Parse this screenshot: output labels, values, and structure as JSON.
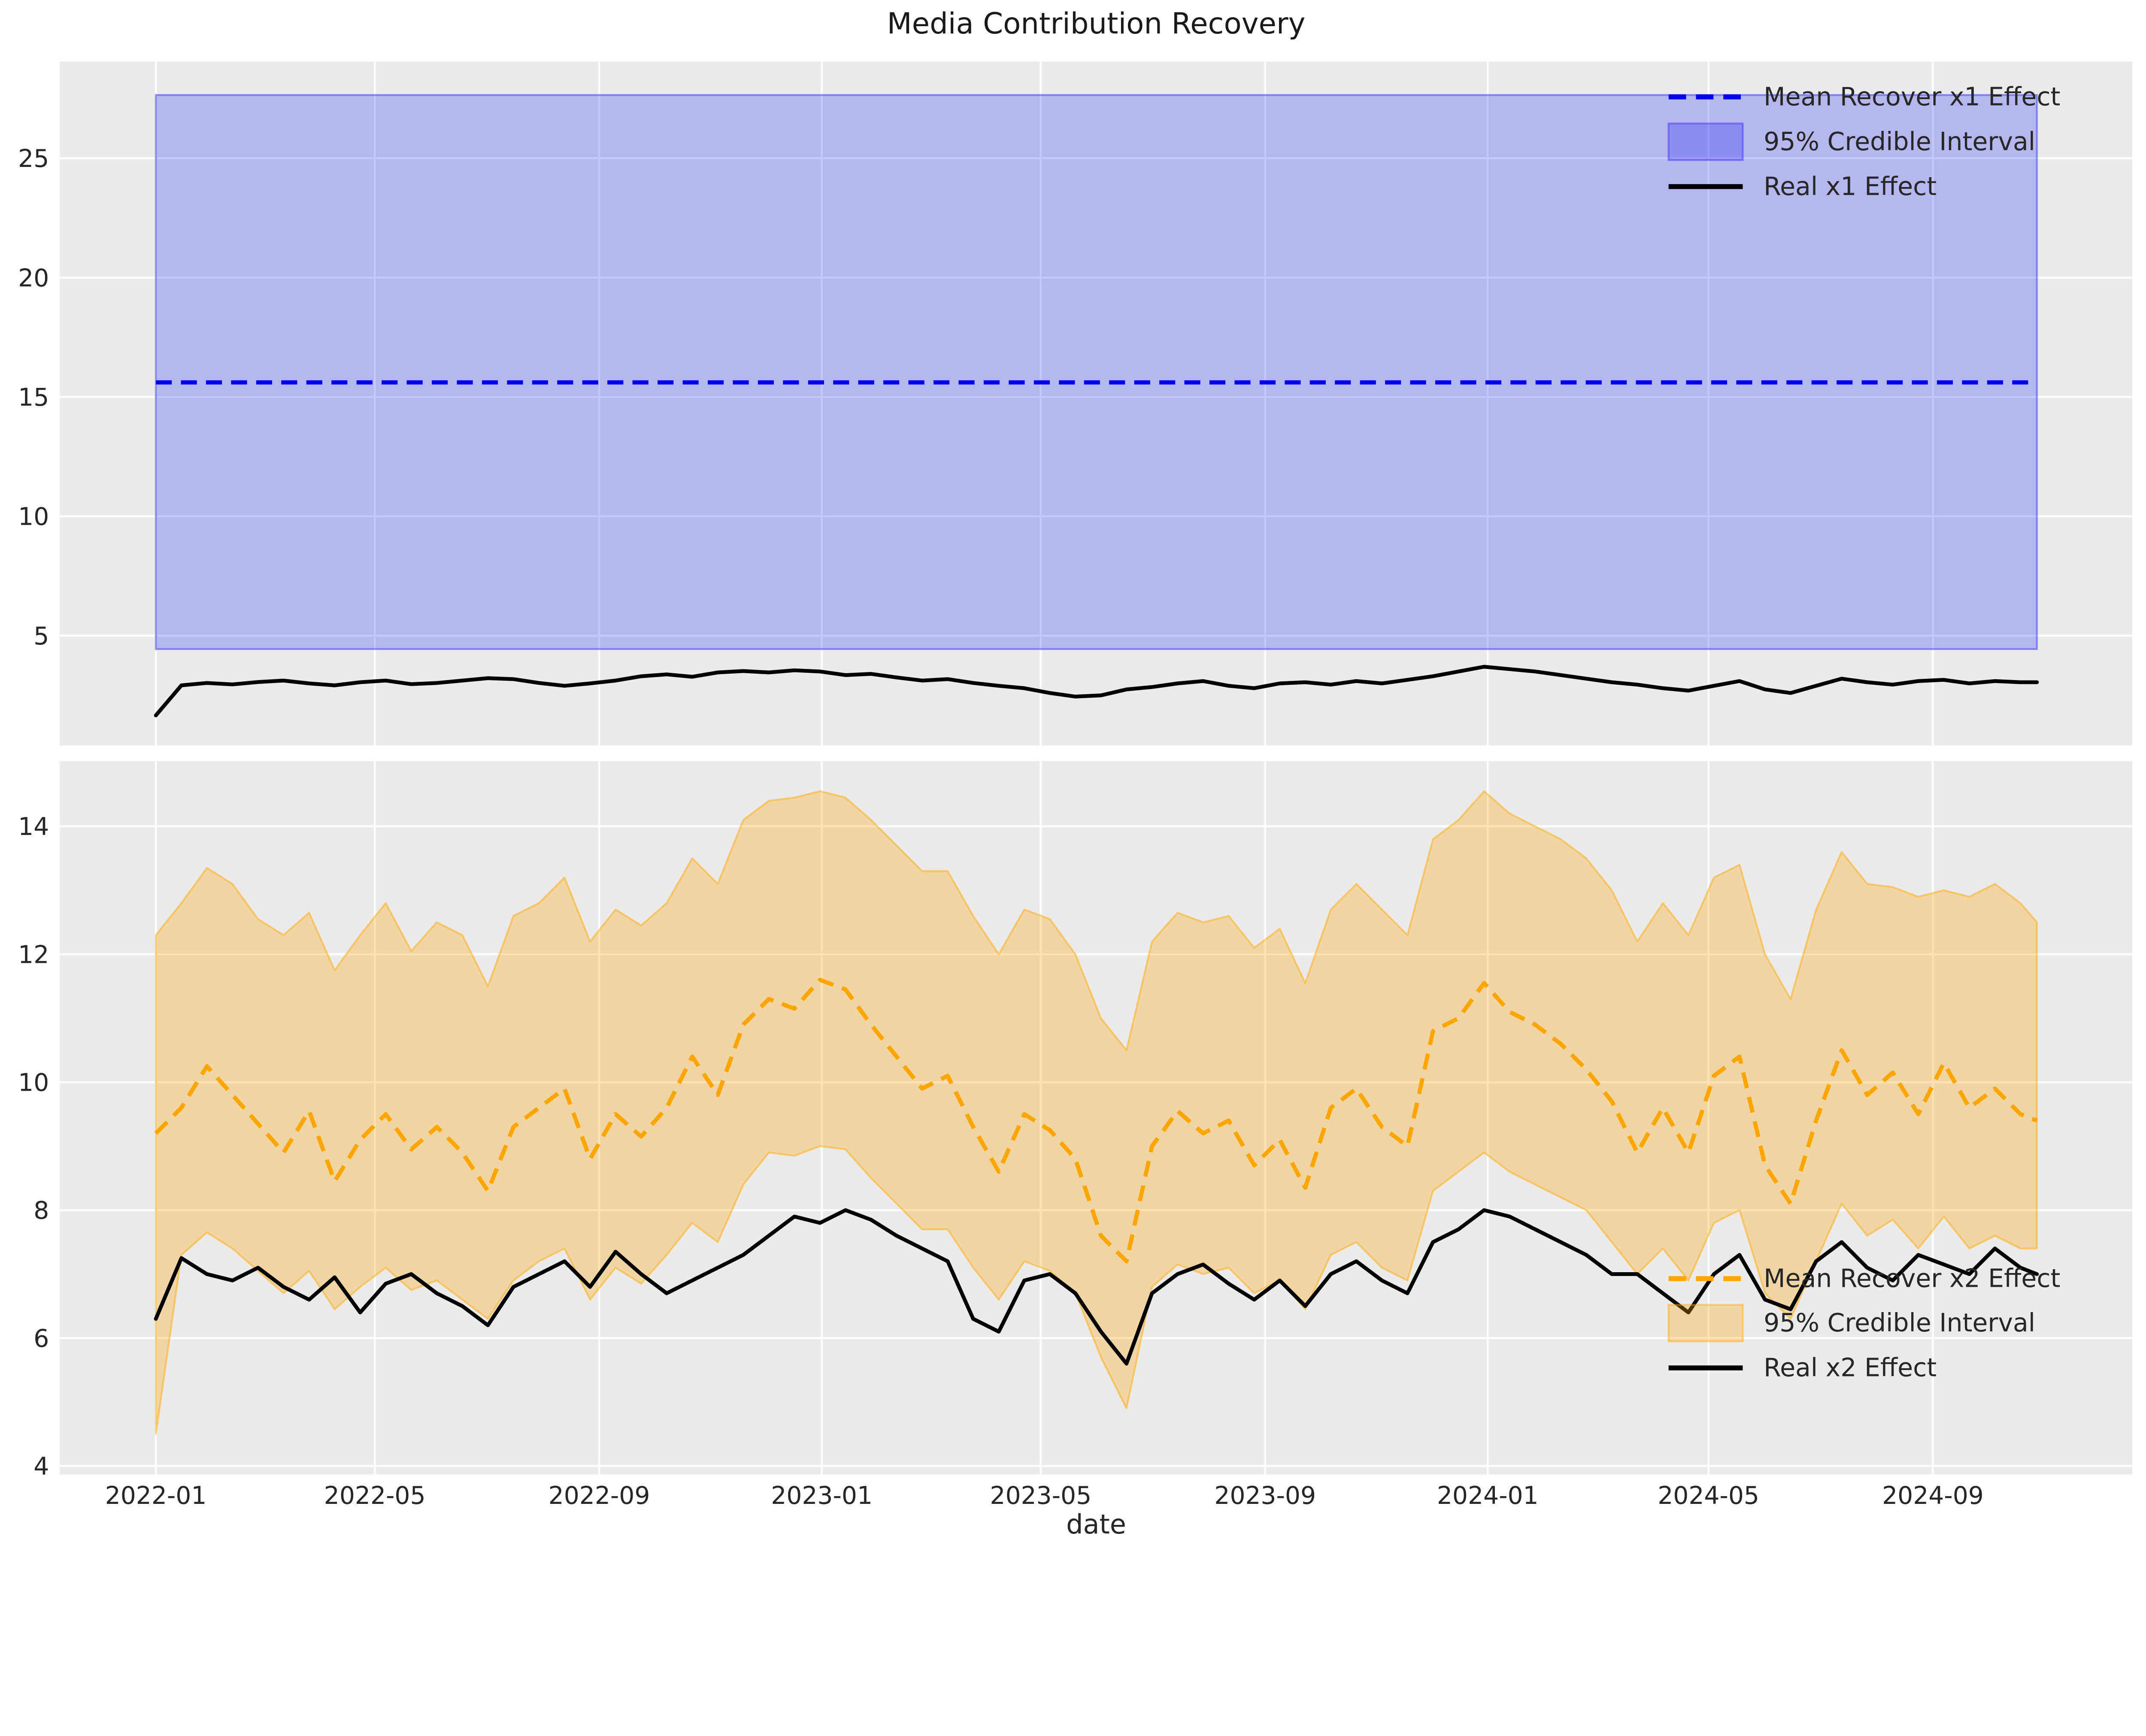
{
  "figure": {
    "title": "Media Contribution Recovery",
    "xlabel": "date",
    "background": "#ffffff",
    "axes_background": "#ebebeb",
    "grid_color": "#ffffff",
    "tick_color": "#262626"
  },
  "x_axis": {
    "label": "date",
    "ticks": [
      {
        "label": "2022-01",
        "t": 0
      },
      {
        "label": "2022-05",
        "t": 120
      },
      {
        "label": "2022-09",
        "t": 243
      },
      {
        "label": "2023-01",
        "t": 365
      },
      {
        "label": "2023-05",
        "t": 485
      },
      {
        "label": "2023-09",
        "t": 608
      },
      {
        "label": "2024-01",
        "t": 730
      },
      {
        "label": "2024-05",
        "t": 851
      },
      {
        "label": "2024-09",
        "t": 974
      }
    ],
    "xlim_days": [
      -52.7,
      1083.3
    ],
    "t_start_date": "2022-01-01"
  },
  "chart_data": [
    {
      "type": "line",
      "panel": "top",
      "ylim": [
        0.4,
        29.05
      ],
      "yticks": [
        5,
        10,
        15,
        20,
        25
      ],
      "grid": true,
      "legend_position": "upper right",
      "legend": [
        {
          "label": "Mean Recover x1 Effect",
          "style": "dashed",
          "color": "#0000ee"
        },
        {
          "label": "95% Credible Interval",
          "style": "patch",
          "fill": "rgba(0,0,255,0.22)",
          "edge": "rgba(60,60,235,0.5)"
        },
        {
          "label": "Real x1 Effect",
          "style": "solid",
          "color": "#000000"
        }
      ],
      "band": {
        "constant": true,
        "lower": 4.44,
        "upper": 27.65,
        "fill": "rgba(0,0,255,0.22)",
        "edge": "rgba(60,60,235,0.5)"
      },
      "mean_line": {
        "constant": 15.61,
        "color": "#0000ee",
        "style": "dashed"
      },
      "real_line": {
        "color": "#000000",
        "t": [
          0,
          14,
          28,
          42,
          56,
          70,
          84,
          98,
          112,
          126,
          140,
          154,
          168,
          182,
          196,
          210,
          224,
          238,
          252,
          266,
          280,
          294,
          308,
          322,
          336,
          350,
          364,
          378,
          392,
          406,
          420,
          434,
          448,
          462,
          476,
          490,
          504,
          518,
          532,
          546,
          560,
          574,
          588,
          602,
          616,
          630,
          644,
          658,
          672,
          686,
          700,
          714,
          728,
          742,
          756,
          770,
          784,
          798,
          812,
          826,
          840,
          854,
          868,
          882,
          896,
          910,
          924,
          938,
          952,
          966,
          980,
          994,
          1008,
          1022,
          1031
        ],
        "y": [
          1.66,
          2.92,
          3.02,
          2.96,
          3.06,
          3.12,
          3.0,
          2.92,
          3.05,
          3.12,
          2.97,
          3.02,
          3.12,
          3.22,
          3.18,
          3.02,
          2.9,
          3.0,
          3.12,
          3.3,
          3.38,
          3.28,
          3.46,
          3.52,
          3.46,
          3.55,
          3.5,
          3.35,
          3.4,
          3.25,
          3.12,
          3.18,
          3.02,
          2.9,
          2.8,
          2.6,
          2.45,
          2.5,
          2.75,
          2.85,
          3.0,
          3.1,
          2.9,
          2.8,
          3.0,
          3.05,
          2.95,
          3.1,
          3.0,
          3.15,
          3.3,
          3.5,
          3.7,
          3.6,
          3.5,
          3.35,
          3.2,
          3.05,
          2.95,
          2.8,
          2.7,
          2.9,
          3.1,
          2.75,
          2.6,
          2.9,
          3.2,
          3.05,
          2.95,
          3.1,
          3.15,
          3.0,
          3.1,
          3.05,
          3.05
        ]
      }
    },
    {
      "type": "line",
      "panel": "bottom",
      "ylim": [
        3.87,
        15.02
      ],
      "yticks": [
        4,
        6,
        8,
        10,
        12,
        14
      ],
      "grid": true,
      "legend_position": "lower right",
      "legend": [
        {
          "label": "Mean Recover x2 Effect",
          "style": "dashed",
          "color": "#ffa500"
        },
        {
          "label": "95% Credible Interval",
          "style": "patch",
          "fill": "rgba(255,166,0,0.30)",
          "edge": "rgba(255,166,0,0.45)"
        },
        {
          "label": "Real x2 Effect",
          "style": "solid",
          "color": "#000000"
        }
      ],
      "band": {
        "constant": false,
        "fill": "rgba(255,166,0,0.30)",
        "edge": "rgba(255,166,0,0.45)",
        "t": [
          0,
          14,
          28,
          42,
          56,
          70,
          84,
          98,
          112,
          126,
          140,
          154,
          168,
          182,
          196,
          210,
          224,
          238,
          252,
          266,
          280,
          294,
          308,
          322,
          336,
          350,
          364,
          378,
          392,
          406,
          420,
          434,
          448,
          462,
          476,
          490,
          504,
          518,
          532,
          546,
          560,
          574,
          588,
          602,
          616,
          630,
          644,
          658,
          672,
          686,
          700,
          714,
          728,
          742,
          756,
          770,
          784,
          798,
          812,
          826,
          840,
          854,
          868,
          882,
          896,
          910,
          924,
          938,
          952,
          966,
          980,
          994,
          1008,
          1022,
          1031
        ],
        "lower": [
          4.5,
          7.3,
          7.65,
          7.4,
          7.05,
          6.7,
          7.05,
          6.45,
          6.8,
          7.1,
          6.75,
          6.9,
          6.6,
          6.3,
          6.9,
          7.2,
          7.4,
          6.6,
          7.1,
          6.85,
          7.3,
          7.8,
          7.5,
          8.4,
          8.9,
          8.85,
          9.0,
          8.95,
          8.5,
          8.1,
          7.7,
          7.7,
          7.1,
          6.6,
          7.2,
          7.05,
          6.7,
          5.7,
          4.9,
          6.8,
          7.15,
          7.0,
          7.1,
          6.7,
          6.9,
          6.45,
          7.3,
          7.5,
          7.1,
          6.9,
          8.3,
          8.6,
          8.9,
          8.6,
          8.4,
          8.2,
          8.0,
          7.5,
          7.0,
          7.4,
          6.9,
          7.8,
          8.0,
          6.7,
          6.3,
          7.2,
          8.1,
          7.6,
          7.85,
          7.4,
          7.9,
          7.4,
          7.6,
          7.4,
          7.4
        ],
        "upper": [
          12.3,
          12.8,
          13.35,
          13.1,
          12.55,
          12.3,
          12.65,
          11.75,
          12.3,
          12.8,
          12.05,
          12.5,
          12.3,
          11.5,
          12.6,
          12.8,
          13.2,
          12.2,
          12.7,
          12.45,
          12.8,
          13.5,
          13.1,
          14.1,
          14.4,
          14.45,
          14.55,
          14.45,
          14.1,
          13.7,
          13.3,
          13.3,
          12.6,
          12.0,
          12.7,
          12.55,
          12.0,
          11.0,
          10.5,
          12.2,
          12.65,
          12.5,
          12.6,
          12.1,
          12.4,
          11.55,
          12.7,
          13.1,
          12.7,
          12.3,
          13.8,
          14.1,
          14.55,
          14.2,
          14.0,
          13.8,
          13.5,
          13.0,
          12.2,
          12.8,
          12.3,
          13.2,
          13.4,
          12.0,
          11.3,
          12.7,
          13.6,
          13.1,
          13.05,
          12.9,
          13.0,
          12.9,
          13.1,
          12.8,
          12.5
        ]
      },
      "mean_line": {
        "constant": null,
        "color": "#ffa500",
        "style": "dashed",
        "t": [
          0,
          14,
          28,
          42,
          56,
          70,
          84,
          98,
          112,
          126,
          140,
          154,
          168,
          182,
          196,
          210,
          224,
          238,
          252,
          266,
          280,
          294,
          308,
          322,
          336,
          350,
          364,
          378,
          392,
          406,
          420,
          434,
          448,
          462,
          476,
          490,
          504,
          518,
          532,
          546,
          560,
          574,
          588,
          602,
          616,
          630,
          644,
          658,
          672,
          686,
          700,
          714,
          728,
          742,
          756,
          770,
          784,
          798,
          812,
          826,
          840,
          854,
          868,
          882,
          896,
          910,
          924,
          938,
          952,
          966,
          980,
          994,
          1008,
          1022,
          1031
        ],
        "y": [
          9.2,
          9.6,
          10.25,
          9.8,
          9.35,
          8.9,
          9.55,
          8.45,
          9.1,
          9.5,
          8.95,
          9.3,
          8.9,
          8.3,
          9.3,
          9.6,
          9.9,
          8.8,
          9.5,
          9.15,
          9.6,
          10.4,
          9.8,
          10.9,
          11.3,
          11.15,
          11.6,
          11.45,
          10.9,
          10.4,
          9.9,
          10.1,
          9.3,
          8.6,
          9.5,
          9.25,
          8.8,
          7.6,
          7.2,
          9.0,
          9.55,
          9.2,
          9.4,
          8.7,
          9.1,
          8.35,
          9.6,
          9.9,
          9.3,
          9.0,
          10.8,
          11.0,
          11.55,
          11.1,
          10.9,
          10.6,
          10.2,
          9.7,
          8.9,
          9.6,
          8.9,
          10.1,
          10.4,
          8.7,
          8.1,
          9.4,
          10.5,
          9.8,
          10.15,
          9.5,
          10.3,
          9.6,
          9.9,
          9.5,
          9.4
        ]
      },
      "real_line": {
        "color": "#000000",
        "t": [
          0,
          14,
          28,
          42,
          56,
          70,
          84,
          98,
          112,
          126,
          140,
          154,
          168,
          182,
          196,
          210,
          224,
          238,
          252,
          266,
          280,
          294,
          308,
          322,
          336,
          350,
          364,
          378,
          392,
          406,
          420,
          434,
          448,
          462,
          476,
          490,
          504,
          518,
          532,
          546,
          560,
          574,
          588,
          602,
          616,
          630,
          644,
          658,
          672,
          686,
          700,
          714,
          728,
          742,
          756,
          770,
          784,
          798,
          812,
          826,
          840,
          854,
          868,
          882,
          896,
          910,
          924,
          938,
          952,
          966,
          980,
          994,
          1008,
          1022,
          1031
        ],
        "y": [
          6.3,
          7.25,
          7.0,
          6.9,
          7.1,
          6.8,
          6.6,
          6.95,
          6.4,
          6.85,
          7.0,
          6.7,
          6.5,
          6.2,
          6.8,
          7.0,
          7.2,
          6.8,
          7.35,
          7.0,
          6.7,
          6.9,
          7.1,
          7.3,
          7.6,
          7.9,
          7.8,
          8.0,
          7.85,
          7.6,
          7.4,
          7.2,
          6.3,
          6.1,
          6.9,
          7.0,
          6.7,
          6.1,
          5.6,
          6.7,
          7.0,
          7.15,
          6.85,
          6.6,
          6.9,
          6.5,
          7.0,
          7.2,
          6.9,
          6.7,
          7.5,
          7.7,
          8.0,
          7.9,
          7.7,
          7.5,
          7.3,
          7.0,
          7.0,
          6.7,
          6.4,
          7.0,
          7.3,
          6.6,
          6.45,
          7.2,
          7.5,
          7.1,
          6.9,
          7.3,
          7.15,
          7.0,
          7.4,
          7.1,
          7.0
        ]
      }
    }
  ]
}
